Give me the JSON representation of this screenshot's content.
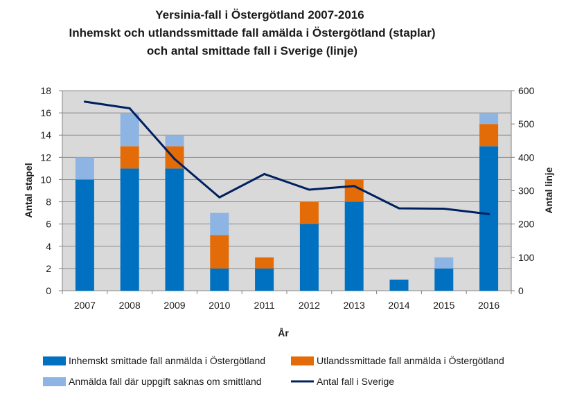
{
  "chart_data": {
    "type": "bar",
    "stacked": true,
    "title_lines": [
      "Yersinia-fall i Östergötland 2007-2016",
      "Inhemskt och utlandssmittade fall amälda i Östergötland (staplar)",
      "och antal smittade fall i Sverige (linje)"
    ],
    "categories": [
      "2007",
      "2008",
      "2009",
      "2010",
      "2011",
      "2012",
      "2013",
      "2014",
      "2015",
      "2016"
    ],
    "series": [
      {
        "name": "Inhemskt smittade fall anmälda  i Östergötland",
        "type": "bar",
        "axis": "left",
        "color": "#0070C0",
        "values": [
          10,
          11,
          11,
          2,
          2,
          6,
          8,
          1,
          2,
          13
        ]
      },
      {
        "name": "Utlandssmittade fall anmälda i Östergötland",
        "type": "bar",
        "axis": "left",
        "color": "#E36C09",
        "values": [
          0,
          2,
          2,
          3,
          1,
          2,
          2,
          0,
          0,
          2
        ]
      },
      {
        "name": "Anmälda fall där uppgift saknas om smittland",
        "type": "bar",
        "axis": "left",
        "color": "#8DB4E2",
        "values": [
          2,
          3,
          1,
          2,
          0,
          0,
          0,
          0,
          1,
          1
        ]
      },
      {
        "name": "Antal fall i Sverige",
        "type": "line",
        "axis": "right",
        "color": "#002060",
        "values": [
          567,
          547,
          395,
          280,
          350,
          303,
          314,
          247,
          246,
          230
        ]
      }
    ],
    "xlabel": "År",
    "ylabel": "Antal stapel",
    "y2label": "Antal linje",
    "ylim": [
      0,
      18
    ],
    "yticks": [
      "0",
      "2",
      "4",
      "6",
      "8",
      "10",
      "12",
      "14",
      "16",
      "18"
    ],
    "y2lim": [
      0,
      600
    ],
    "y2ticks": [
      "0",
      "100",
      "200",
      "300",
      "400",
      "500",
      "600"
    ],
    "plot_background": "#D9D9D9",
    "legend": "bottom"
  }
}
